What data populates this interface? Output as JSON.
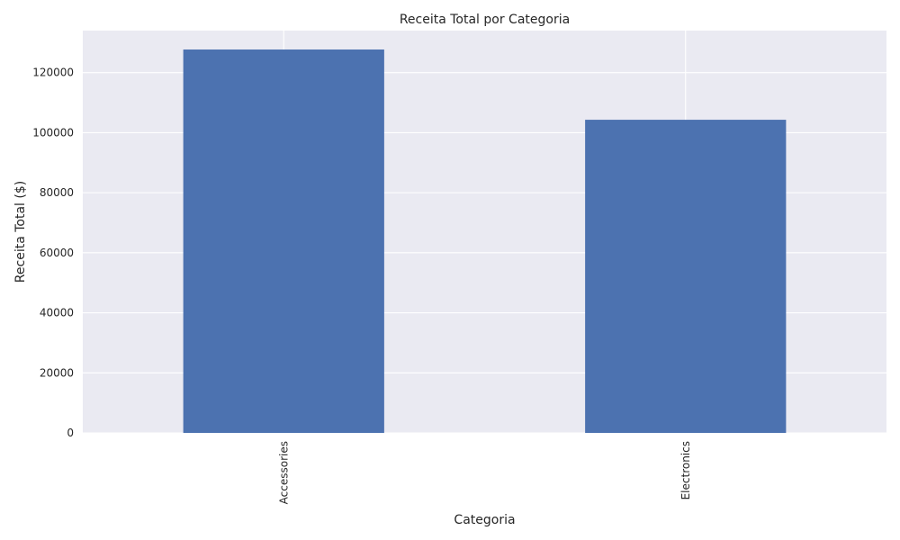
{
  "chart_data": {
    "type": "bar",
    "title": "Receita Total por Categoria",
    "xlabel": "Categoria",
    "ylabel": "Receita Total ($)",
    "categories": [
      "Accessories",
      "Electronics"
    ],
    "series": [
      {
        "values": [
          127700,
          104300
        ]
      }
    ],
    "ylim": [
      0,
      134000
    ],
    "yticks": [
      0,
      20000,
      40000,
      60000,
      80000,
      100000,
      120000
    ],
    "ytick_labels": [
      "0",
      "20000",
      "40000",
      "60000",
      "80000",
      "100000",
      "120000"
    ],
    "grid": true,
    "legend": "none",
    "colors": {
      "bar": "#4c72b0",
      "plot_background": "#eaeaf2",
      "grid": "#ffffff",
      "text": "#262626"
    }
  }
}
